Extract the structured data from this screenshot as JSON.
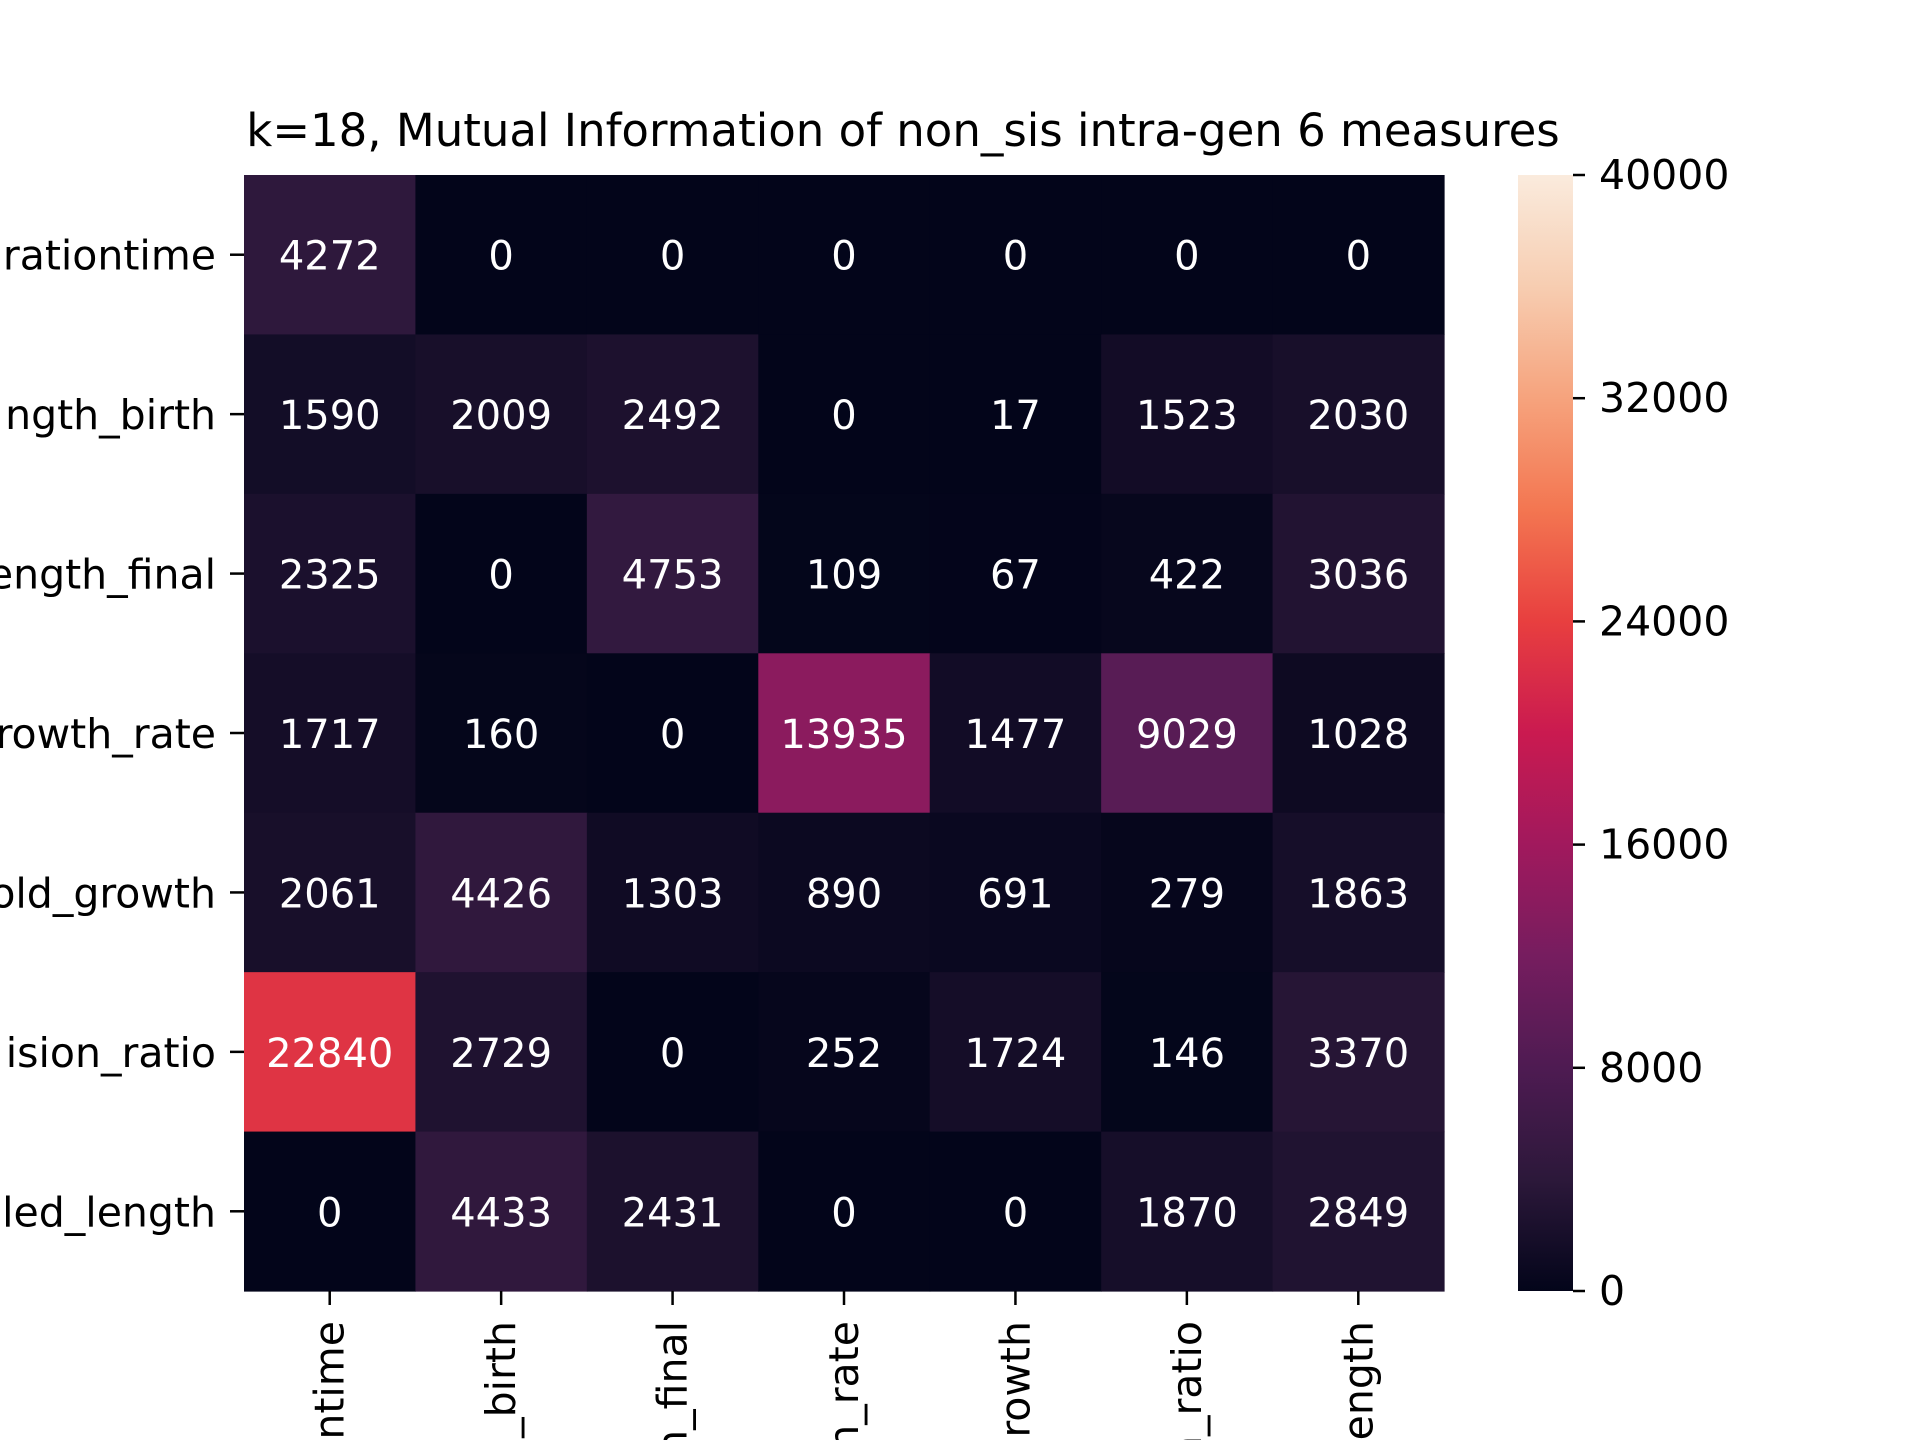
{
  "chart_data": {
    "type": "heatmap",
    "title": "k=18, Mutual Information of non_sis intra-gen 6 measures",
    "xlabel": "",
    "ylabel": "",
    "row_labels": [
      "rationtime",
      "ngth_birth",
      "ength_final",
      "rowth_rate",
      "old_growth",
      "ision_ratio",
      "led_length"
    ],
    "col_labels": [
      "ntime",
      "n_birth",
      "n_final",
      "n_rate",
      "growth",
      "n_ratio",
      "ength"
    ],
    "values": [
      [
        4272,
        0,
        0,
        0,
        0,
        0,
        0
      ],
      [
        1590,
        2009,
        2492,
        0,
        17,
        1523,
        2030
      ],
      [
        2325,
        0,
        4753,
        109,
        67,
        422,
        3036
      ],
      [
        1717,
        160,
        0,
        13935,
        1477,
        9029,
        1028
      ],
      [
        2061,
        4426,
        1303,
        890,
        691,
        279,
        1863
      ],
      [
        22840,
        2729,
        0,
        252,
        1724,
        146,
        3370
      ],
      [
        0,
        4433,
        2431,
        0,
        0,
        1870,
        2849
      ]
    ],
    "vmin": 0,
    "vmax": 40000,
    "colorbar_ticks": [
      0,
      8000,
      16000,
      24000,
      32000,
      40000
    ],
    "colormap": "rocket",
    "annotation_color": "#ffffff",
    "grid": false,
    "legend": "colorbar-right"
  }
}
